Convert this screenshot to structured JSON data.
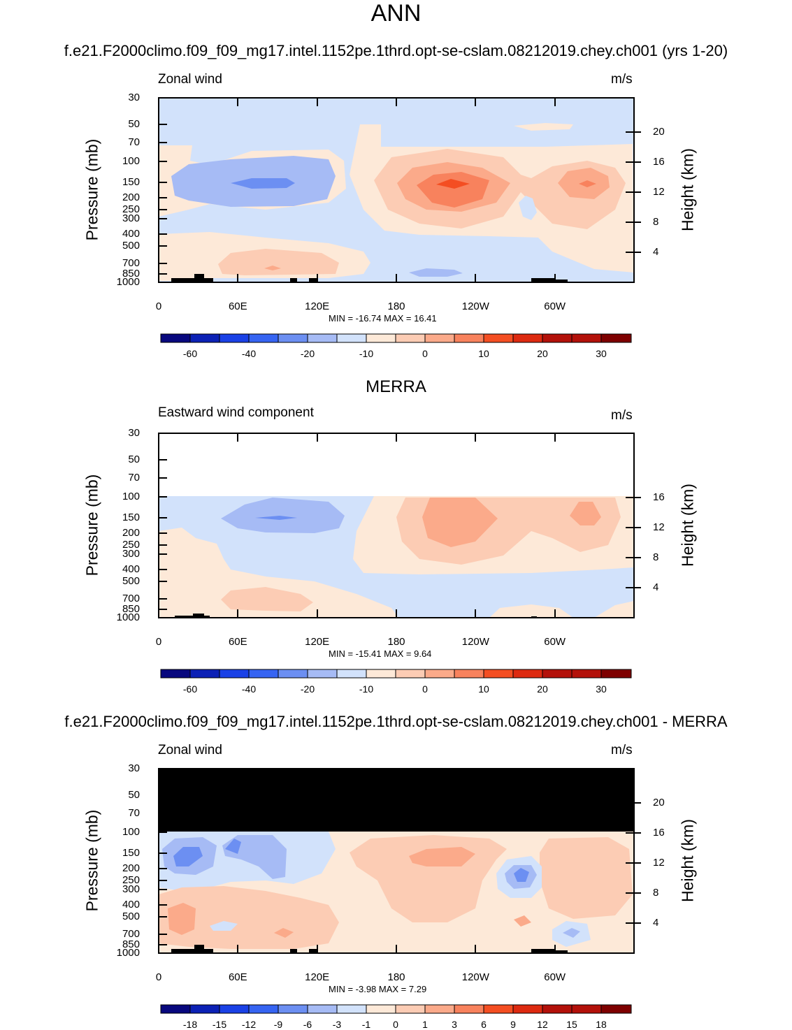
{
  "page": {
    "title": "ANN",
    "case_title": "f.e21.F2000climo.f09_f09_mg17.intel.1152pe.1thrd.opt-se-cslam.08212019.chey.ch001 (yrs 1-20)",
    "ref_title": "MERRA",
    "diff_title": "f.e21.F2000climo.f09_f09_mg17.intel.1152pe.1thrd.opt-se-cslam.08212019.chey.ch001 - MERRA"
  },
  "colors": {
    "blue1": "#08087e",
    "blue2": "#0c21b5",
    "blue3": "#1a41e6",
    "blue4": "#3664f2",
    "blue5": "#6c8ff2",
    "blue6": "#a6bbf5",
    "blue7": "#d2e2fb",
    "red1": "#fde9d8",
    "red2": "#fcccb4",
    "red3": "#fbaa8a",
    "red4": "#f8825d",
    "red5": "#f44e22",
    "red6": "#dd2a10",
    "red7": "#b3110a",
    "red8": "#7e0000",
    "missing": "#000000",
    "land": "#000000"
  },
  "chart_data": [
    {
      "type": "contour",
      "id": "test",
      "title": "f.e21.F2000climo.f09_f09_mg17.intel.1152pe.1thrd.opt-se-cslam.08212019.chey.ch001 (yrs 1-20)",
      "left_label": "Zonal wind",
      "units": "m/s",
      "xlabel": "",
      "ylabel": "Pressure (mb)",
      "y2label": "Height (km)",
      "xticks": [
        "0",
        "60E",
        "120E",
        "180",
        "120W",
        "60W"
      ],
      "xrange": [
        0,
        360
      ],
      "yticks": [
        "30",
        "50",
        "70",
        "100",
        "150",
        "200",
        "250",
        "300",
        "400",
        "500",
        "700",
        "850",
        "1000"
      ],
      "y2ticks": [
        "20",
        "16",
        "12",
        "8",
        "4"
      ],
      "stats": "MIN = -16.74  MAX =  16.41",
      "min": -16.74,
      "max": 16.41,
      "colorbar": [
        "-60",
        "-40",
        "-20",
        "-10",
        "0",
        "10",
        "20",
        "30"
      ]
    },
    {
      "type": "contour",
      "id": "ref",
      "title": "MERRA",
      "left_label": "Eastward wind component",
      "units": "m/s",
      "xlabel": "",
      "ylabel": "Pressure (mb)",
      "y2label": "Height (km)",
      "xticks": [
        "0",
        "60E",
        "120E",
        "180",
        "120W",
        "60W"
      ],
      "xrange": [
        0,
        360
      ],
      "yticks": [
        "30",
        "50",
        "70",
        "100",
        "150",
        "200",
        "250",
        "300",
        "400",
        "500",
        "700",
        "850",
        "1000"
      ],
      "y2ticks": [
        "16",
        "12",
        "8",
        "4"
      ],
      "stats": "MIN = -15.41  MAX =   9.64",
      "min": -15.41,
      "max": 9.64,
      "colorbar": [
        "-60",
        "-40",
        "-20",
        "-10",
        "0",
        "10",
        "20",
        "30"
      ]
    },
    {
      "type": "contour",
      "id": "diff",
      "title": "f.e21.F2000climo.f09_f09_mg17.intel.1152pe.1thrd.opt-se-cslam.08212019.chey.ch001 - MERRA",
      "left_label": "Zonal wind",
      "units": "m/s",
      "xlabel": "",
      "ylabel": "Pressure (mb)",
      "y2label": "Height (km)",
      "xticks": [
        "0",
        "60E",
        "120E",
        "180",
        "120W",
        "60W"
      ],
      "xrange": [
        0,
        360
      ],
      "yticks": [
        "30",
        "50",
        "70",
        "100",
        "150",
        "200",
        "250",
        "300",
        "400",
        "500",
        "700",
        "850",
        "1000"
      ],
      "y2ticks": [
        "20",
        "16",
        "12",
        "8",
        "4"
      ],
      "stats": "MIN =  -3.98  MAX =   7.29",
      "min": -3.98,
      "max": 7.29,
      "colorbar": [
        "-18",
        "-15",
        "-12",
        "-9",
        "-6",
        "-3",
        "-1",
        "0",
        "1",
        "3",
        "6",
        "9",
        "12",
        "15",
        "18"
      ]
    }
  ]
}
